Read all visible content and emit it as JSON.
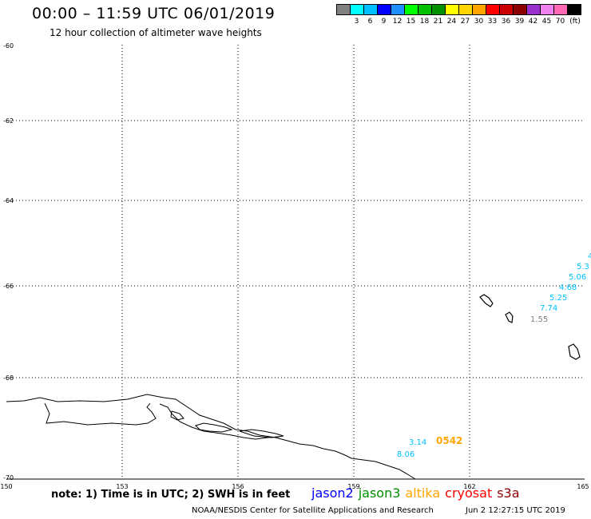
{
  "header": {
    "title": "00:00 – 11:59 UTC 06/01/2019",
    "subtitle": "12 hour collection of altimeter wave heights"
  },
  "legend": {
    "unit": "(ft)",
    "colors": [
      "#808080",
      "#00ffff",
      "#00bfff",
      "#0000ff",
      "#1e90ff",
      "#00ff00",
      "#00c000",
      "#009000",
      "#ffff00",
      "#ffd700",
      "#ffa500",
      "#ff0000",
      "#cc0000",
      "#8b0000",
      "#9932cc",
      "#ee82ee",
      "#ff69b4",
      "#000000"
    ],
    "labels": [
      "3",
      "6",
      "9",
      "12",
      "15",
      "18",
      "21",
      "24",
      "27",
      "30",
      "33",
      "36",
      "39",
      "42",
      "45",
      "70"
    ]
  },
  "map": {
    "lat_labels": [
      "-60",
      "-62",
      "-64",
      "-66",
      "-68",
      "-70"
    ],
    "lon_labels": [
      "150",
      "153",
      "156",
      "159",
      "162",
      "165"
    ],
    "wave_labels": [
      {
        "text": "4",
        "color": "#00bfff"
      },
      {
        "text": "5.3",
        "color": "#00bfff"
      },
      {
        "text": "5.06",
        "color": "#00bfff"
      },
      {
        "text": "4.68",
        "color": "#00bfff"
      },
      {
        "text": "5.25",
        "color": "#00bfff"
      },
      {
        "text": "7.74",
        "color": "#00bfff"
      },
      {
        "text": "1.55",
        "color": "#808080"
      },
      {
        "text": "3.14",
        "color": "#00bfff"
      },
      {
        "text": "8.06",
        "color": "#00bfff"
      },
      {
        "text": "0542",
        "color": "#ffa500"
      }
    ]
  },
  "footer": {
    "note": "note: 1) Time is in UTC; 2) SWH is in feet",
    "satellites": [
      {
        "name": "jason2",
        "color": "#0000ff"
      },
      {
        "name": "jason3",
        "color": "#009000"
      },
      {
        "name": "altika",
        "color": "#ffa500"
      },
      {
        "name": "cryosat",
        "color": "#ff0000"
      },
      {
        "name": "s3a",
        "color": "#8b0000"
      }
    ],
    "credit": "NOAA/NESDIS Center for Satellite Applications and Research",
    "timestamp": "Jun  2 12:27:15 UTC 2019"
  }
}
